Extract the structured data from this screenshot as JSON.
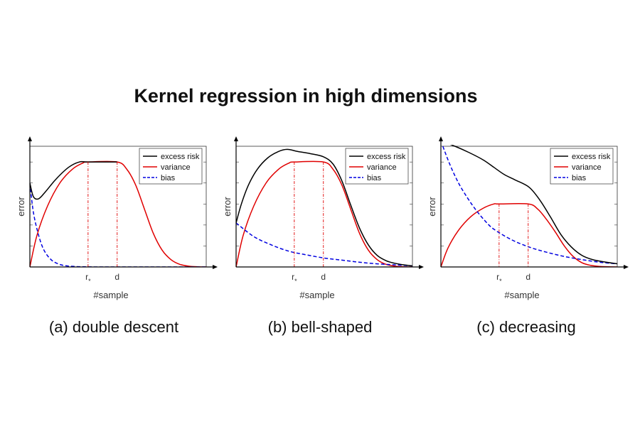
{
  "title": "Kernel regression in high dimensions",
  "colors": {
    "excess_risk": "#000000",
    "variance": "#e00000",
    "bias": "#0000e0"
  },
  "chart_data": [
    {
      "type": "line",
      "caption": "(a) double descent",
      "xlabel": "#sample",
      "ylabel": "error",
      "xlim": [
        0,
        1
      ],
      "ylim": [
        0,
        1.15
      ],
      "xticks": [
        {
          "x": 0.33,
          "label": "r*"
        },
        {
          "x": 0.495,
          "label": "d"
        }
      ],
      "legend": [
        "excess risk",
        "variance",
        "bias"
      ],
      "series": [
        {
          "name": "excess risk",
          "style": "solid",
          "x": [
            0,
            0.02,
            0.05,
            0.09,
            0.15,
            0.22,
            0.28,
            0.33,
            0.495
          ],
          "y": [
            0.8,
            0.67,
            0.65,
            0.72,
            0.84,
            0.95,
            1.0,
            1.0,
            1.0
          ]
        },
        {
          "name": "variance",
          "style": "solid",
          "x": [
            0,
            0.04,
            0.1,
            0.17,
            0.24,
            0.3,
            0.33,
            0.495,
            0.55,
            0.6,
            0.65,
            0.7,
            0.75,
            0.8,
            0.85,
            0.9,
            0.95,
            1.0
          ],
          "y": [
            0,
            0.3,
            0.58,
            0.8,
            0.93,
            0.99,
            1.0,
            1.0,
            0.93,
            0.78,
            0.55,
            0.32,
            0.16,
            0.07,
            0.025,
            0.008,
            0.002,
            0
          ]
        },
        {
          "name": "bias",
          "style": "dashed",
          "x": [
            0,
            0.02,
            0.05,
            0.08,
            0.12,
            0.16,
            0.2,
            0.25,
            0.3,
            0.4,
            0.6,
            1.0
          ],
          "y": [
            0.8,
            0.52,
            0.3,
            0.16,
            0.07,
            0.03,
            0.012,
            0.005,
            0.002,
            0,
            0,
            0
          ]
        }
      ]
    },
    {
      "type": "line",
      "caption": "(b) bell-shaped",
      "xlabel": "#sample",
      "ylabel": "error",
      "xlim": [
        0,
        1
      ],
      "ylim": [
        0,
        1.15
      ],
      "xticks": [
        {
          "x": 0.33,
          "label": "r*"
        },
        {
          "x": 0.495,
          "label": "d"
        }
      ],
      "legend": [
        "excess risk",
        "variance",
        "bias"
      ],
      "series": [
        {
          "name": "excess risk",
          "style": "solid",
          "x": [
            0,
            0.03,
            0.07,
            0.12,
            0.18,
            0.24,
            0.29,
            0.35,
            0.42,
            0.495,
            0.55,
            0.6,
            0.65,
            0.7,
            0.75,
            0.8,
            0.85,
            0.9,
            0.95,
            1.0
          ],
          "y": [
            0.42,
            0.6,
            0.78,
            0.93,
            1.04,
            1.1,
            1.12,
            1.1,
            1.08,
            1.05,
            0.98,
            0.82,
            0.59,
            0.37,
            0.21,
            0.11,
            0.06,
            0.035,
            0.02,
            0.01
          ]
        },
        {
          "name": "variance",
          "style": "solid",
          "x": [
            0,
            0.04,
            0.1,
            0.17,
            0.24,
            0.3,
            0.33,
            0.495,
            0.55,
            0.6,
            0.65,
            0.7,
            0.75,
            0.8,
            0.85,
            0.9,
            0.95,
            1.0
          ],
          "y": [
            0,
            0.3,
            0.58,
            0.8,
            0.93,
            0.99,
            1.0,
            1.0,
            0.93,
            0.78,
            0.55,
            0.32,
            0.16,
            0.07,
            0.025,
            0.008,
            0.002,
            0
          ]
        },
        {
          "name": "bias",
          "style": "dashed",
          "x": [
            0,
            0.1,
            0.2,
            0.3,
            0.4,
            0.5,
            0.6,
            0.7,
            0.8,
            0.9,
            1.0
          ],
          "y": [
            0.42,
            0.29,
            0.21,
            0.15,
            0.115,
            0.085,
            0.065,
            0.045,
            0.03,
            0.02,
            0.01
          ]
        }
      ]
    },
    {
      "type": "line",
      "caption": "(c) decreasing",
      "xlabel": "#sample",
      "ylabel": "error",
      "xlim": [
        0,
        1
      ],
      "ylim": [
        0,
        1.15
      ],
      "xticks": [
        {
          "x": 0.33,
          "label": "r*"
        },
        {
          "x": 0.495,
          "label": "d"
        }
      ],
      "legend": [
        "excess risk",
        "variance",
        "bias"
      ],
      "series": [
        {
          "name": "excess risk",
          "style": "solid",
          "x": [
            0,
            0.08,
            0.16,
            0.24,
            0.3,
            0.36,
            0.42,
            0.5,
            0.56,
            0.62,
            0.68,
            0.74,
            0.8,
            0.86,
            0.92,
            1.0
          ],
          "y": [
            1.2,
            1.15,
            1.09,
            1.02,
            0.95,
            0.88,
            0.83,
            0.76,
            0.64,
            0.48,
            0.31,
            0.19,
            0.11,
            0.07,
            0.05,
            0.03
          ]
        },
        {
          "name": "variance",
          "style": "solid",
          "x": [
            0,
            0.04,
            0.1,
            0.17,
            0.24,
            0.3,
            0.33,
            0.495,
            0.55,
            0.6,
            0.65,
            0.7,
            0.75,
            0.8,
            0.85,
            0.9,
            0.95,
            1.0
          ],
          "y": [
            0,
            0.18,
            0.35,
            0.48,
            0.56,
            0.6,
            0.6,
            0.6,
            0.55,
            0.45,
            0.33,
            0.2,
            0.1,
            0.04,
            0.015,
            0.005,
            0.002,
            0
          ]
        },
        {
          "name": "bias",
          "style": "dashed",
          "x": [
            0,
            0.05,
            0.1,
            0.15,
            0.2,
            0.25,
            0.3,
            0.4,
            0.5,
            0.6,
            0.7,
            0.8,
            0.9,
            1.0
          ],
          "y": [
            1.2,
            0.98,
            0.8,
            0.66,
            0.54,
            0.44,
            0.36,
            0.26,
            0.19,
            0.14,
            0.1,
            0.07,
            0.045,
            0.03
          ]
        }
      ]
    }
  ]
}
